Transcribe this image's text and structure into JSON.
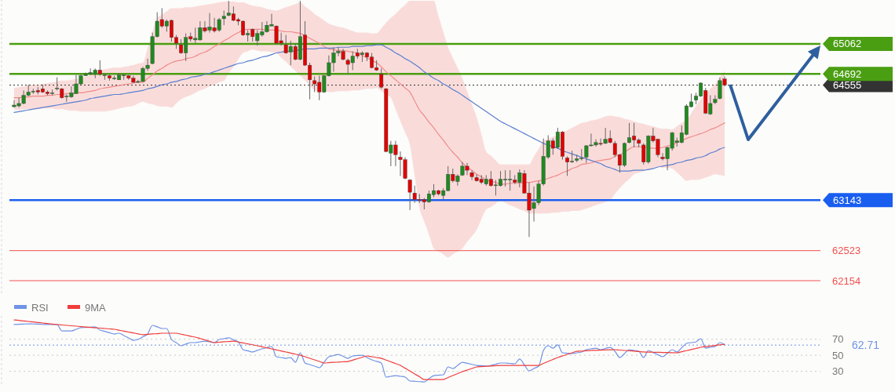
{
  "chart_data": [
    {
      "type": "candlestick",
      "categories": [
        null,
        null,
        null,
        null,
        null,
        null,
        null,
        null,
        null,
        null,
        null,
        null,
        null,
        null,
        null,
        null,
        null,
        null,
        null,
        null,
        null,
        null,
        null,
        null,
        null,
        null,
        null,
        null,
        null,
        null,
        null,
        null,
        null,
        null,
        null,
        null,
        null,
        null,
        null,
        null,
        null,
        null,
        null,
        null,
        null,
        null,
        null,
        null,
        null,
        null,
        null,
        null,
        null,
        null,
        null,
        null,
        null,
        null,
        null,
        null,
        null,
        null,
        null,
        null,
        null,
        null,
        null,
        null,
        null,
        null,
        null,
        null,
        null,
        null,
        null,
        null,
        null,
        null,
        null,
        null,
        null,
        null,
        null,
        null,
        null,
        null,
        null,
        null,
        null,
        null,
        null,
        null,
        null,
        null,
        null,
        null,
        null,
        null,
        null,
        null,
        null,
        null,
        null,
        null,
        null,
        null,
        null,
        null,
        null,
        null,
        null,
        null,
        null,
        null,
        null,
        null,
        null,
        null,
        null,
        null,
        null,
        null,
        null,
        null,
        null,
        null,
        null,
        null,
        null,
        null,
        null,
        null,
        null,
        null,
        null,
        null,
        null,
        null,
        null,
        null,
        null,
        null,
        null,
        null,
        null,
        null,
        null,
        null,
        null,
        null
      ],
      "ylim": [
        62000,
        65600
      ],
      "yticks": [
        62154,
        62523,
        63143,
        64555,
        64692,
        65062
      ],
      "tick_labels": "y",
      "ohlc": [
        [
          64290,
          64370,
          64280,
          64310
        ],
        [
          64300,
          64400,
          64280,
          64330
        ],
        [
          64330,
          64490,
          64320,
          64430
        ],
        [
          64430,
          64560,
          64420,
          64470
        ],
        [
          64470,
          64510,
          64450,
          64480
        ],
        [
          64490,
          64530,
          64440,
          64470
        ],
        [
          64510,
          64560,
          64460,
          64470
        ],
        [
          64470,
          64490,
          64430,
          64450
        ],
        [
          64450,
          64500,
          64430,
          64460
        ],
        [
          64510,
          64650,
          64490,
          64520
        ],
        [
          64510,
          64520,
          64390,
          64400
        ],
        [
          64410,
          64440,
          64350,
          64420
        ],
        [
          64410,
          64540,
          64400,
          64460
        ],
        [
          64450,
          64680,
          64450,
          64570
        ],
        [
          64570,
          64690,
          64560,
          64670
        ],
        [
          64670,
          64710,
          64670,
          64690
        ],
        [
          64690,
          64760,
          64680,
          64710
        ],
        [
          64690,
          64760,
          64640,
          64740
        ],
        [
          64740,
          64860,
          64670,
          64690
        ],
        [
          64670,
          64700,
          64620,
          64680
        ],
        [
          64670,
          64690,
          64610,
          64640
        ],
        [
          64630,
          64670,
          64620,
          64640
        ],
        [
          64620,
          64700,
          64620,
          64680
        ],
        [
          64670,
          64690,
          64620,
          64680
        ],
        [
          64670,
          64680,
          64620,
          64640
        ],
        [
          64640,
          64670,
          64580,
          64590
        ],
        [
          64590,
          64620,
          64580,
          64600
        ],
        [
          64600,
          64780,
          64590,
          64760
        ],
        [
          64760,
          64880,
          64730,
          64800
        ],
        [
          64820,
          65200,
          64810,
          65150
        ],
        [
          65150,
          65450,
          65140,
          65340
        ],
        [
          65360,
          65500,
          65260,
          65280
        ],
        [
          65280,
          65360,
          65210,
          65340
        ],
        [
          65350,
          65360,
          65090,
          65140
        ],
        [
          65140,
          65170,
          65000,
          65070
        ],
        [
          65050,
          65120,
          64940,
          64950
        ],
        [
          64950,
          65190,
          64850,
          65140
        ],
        [
          65150,
          65200,
          65090,
          65120
        ],
        [
          65110,
          65260,
          65070,
          65130
        ],
        [
          65110,
          65340,
          65100,
          65260
        ],
        [
          65260,
          65340,
          65200,
          65220
        ],
        [
          65230,
          65440,
          65200,
          65270
        ],
        [
          65260,
          65380,
          65200,
          65220
        ],
        [
          65230,
          65380,
          65210,
          65360
        ],
        [
          65370,
          65470,
          65290,
          65400
        ],
        [
          65410,
          65590,
          65400,
          65440
        ],
        [
          65430,
          65520,
          65340,
          65350
        ],
        [
          65360,
          65380,
          65290,
          65340
        ],
        [
          65340,
          65350,
          65160,
          65170
        ],
        [
          65170,
          65230,
          65090,
          65190
        ],
        [
          65240,
          65250,
          65090,
          65150
        ],
        [
          65100,
          65230,
          65040,
          65190
        ],
        [
          65170,
          65330,
          65150,
          65210
        ],
        [
          65210,
          65340,
          65200,
          65290
        ],
        [
          65280,
          65430,
          65280,
          65300
        ],
        [
          65280,
          65290,
          65060,
          65070
        ],
        [
          65100,
          65200,
          65040,
          65070
        ],
        [
          65050,
          65170,
          64940,
          64950
        ],
        [
          64960,
          65100,
          64800,
          65030
        ],
        [
          65030,
          65070,
          64860,
          64870
        ],
        [
          64870,
          65590,
          64860,
          65150
        ],
        [
          65170,
          65340,
          64790,
          64800
        ],
        [
          64800,
          64830,
          64380,
          64620
        ],
        [
          64610,
          64660,
          64470,
          64570
        ],
        [
          64590,
          64670,
          64370,
          64470
        ],
        [
          64470,
          64680,
          64460,
          64670
        ],
        [
          64670,
          64920,
          64660,
          64830
        ],
        [
          64830,
          65020,
          64720,
          64950
        ],
        [
          64950,
          65020,
          64910,
          64970
        ],
        [
          64970,
          65000,
          64860,
          64870
        ],
        [
          64860,
          64880,
          64690,
          64810
        ],
        [
          64830,
          64970,
          64740,
          64910
        ],
        [
          64950,
          65000,
          64880,
          64910
        ],
        [
          64930,
          64970,
          64840,
          64950
        ],
        [
          64950,
          64960,
          64850,
          64900
        ],
        [
          64900,
          64950,
          64760,
          64770
        ],
        [
          64770,
          64860,
          64730,
          64740
        ],
        [
          64690,
          64760,
          64510,
          64530
        ],
        [
          64510,
          64520,
          63730,
          63740
        ],
        [
          63720,
          63870,
          63560,
          63820
        ],
        [
          63820,
          63870,
          63560,
          63700
        ],
        [
          63670,
          63740,
          63440,
          63640
        ],
        [
          63640,
          63670,
          63400,
          63410
        ],
        [
          63390,
          63400,
          63020,
          63240
        ],
        [
          63230,
          63320,
          63110,
          63150
        ],
        [
          63150,
          63220,
          63110,
          63140
        ],
        [
          63150,
          63170,
          63030,
          63120
        ],
        [
          63120,
          63260,
          63110,
          63220
        ],
        [
          63210,
          63340,
          63180,
          63260
        ],
        [
          63260,
          63270,
          63200,
          63220
        ],
        [
          63200,
          63290,
          63150,
          63260
        ],
        [
          63260,
          63560,
          63250,
          63460
        ],
        [
          63460,
          63530,
          63360,
          63380
        ],
        [
          63370,
          63460,
          63320,
          63440
        ],
        [
          63450,
          63610,
          63440,
          63560
        ],
        [
          63560,
          63600,
          63450,
          63510
        ],
        [
          63480,
          63510,
          63390,
          63430
        ],
        [
          63420,
          63460,
          63370,
          63380
        ],
        [
          63400,
          63450,
          63340,
          63360
        ],
        [
          63340,
          63450,
          63320,
          63400
        ],
        [
          63400,
          63500,
          63310,
          63320
        ],
        [
          63320,
          63390,
          63200,
          63330
        ],
        [
          63320,
          63500,
          63310,
          63400
        ],
        [
          63390,
          63510,
          63310,
          63400
        ],
        [
          63390,
          63510,
          63260,
          63400
        ],
        [
          63390,
          63450,
          63340,
          63360
        ],
        [
          63360,
          63520,
          63300,
          63480
        ],
        [
          63470,
          63510,
          63220,
          63230
        ],
        [
          63230,
          63360,
          62690,
          63020
        ],
        [
          63040,
          63310,
          62880,
          63110
        ],
        [
          63110,
          63380,
          63080,
          63340
        ],
        [
          63340,
          63900,
          63320,
          63680
        ],
        [
          63670,
          63940,
          63650,
          63870
        ],
        [
          63870,
          63900,
          63700,
          63780
        ],
        [
          63790,
          64030,
          63770,
          63980
        ],
        [
          63980,
          63990,
          63640,
          63680
        ],
        [
          63660,
          63680,
          63440,
          63610
        ],
        [
          63610,
          63750,
          63600,
          63620
        ],
        [
          63630,
          63700,
          63610,
          63650
        ],
        [
          63650,
          63770,
          63630,
          63660
        ],
        [
          63670,
          63820,
          63600,
          63810
        ],
        [
          63810,
          63960,
          63800,
          63820
        ],
        [
          63820,
          63890,
          63800,
          63850
        ],
        [
          63840,
          63900,
          63810,
          63830
        ],
        [
          63840,
          64030,
          63830,
          63890
        ],
        [
          63900,
          64000,
          63840,
          63850
        ],
        [
          63840,
          63870,
          63670,
          63700
        ],
        [
          63700,
          63710,
          63480,
          63570
        ],
        [
          63570,
          63850,
          63550,
          63840
        ],
        [
          63850,
          64090,
          63840,
          63910
        ],
        [
          63930,
          64090,
          63790,
          63880
        ],
        [
          63880,
          63900,
          63790,
          63840
        ],
        [
          63820,
          63840,
          63580,
          63610
        ],
        [
          63610,
          63940,
          63590,
          63930
        ],
        [
          63930,
          64030,
          63850,
          63870
        ],
        [
          63890,
          63900,
          63670,
          63700
        ],
        [
          63670,
          63720,
          63630,
          63650
        ],
        [
          63650,
          63800,
          63510,
          63790
        ],
        [
          63780,
          63980,
          63750,
          63970
        ],
        [
          63850,
          63910,
          63800,
          63870
        ],
        [
          63850,
          64060,
          63840,
          63970
        ],
        [
          63950,
          64320,
          63940,
          64300
        ],
        [
          64290,
          64450,
          64280,
          64350
        ],
        [
          64370,
          64460,
          64320,
          64420
        ],
        [
          64420,
          64590,
          64410,
          64580
        ],
        [
          64490,
          64520,
          64200,
          64210
        ],
        [
          64200,
          64430,
          64190,
          64330
        ],
        [
          64340,
          64430,
          64320,
          64380
        ],
        [
          64390,
          64650,
          64380,
          64610
        ],
        [
          64630,
          64660,
          64540,
          64555
        ]
      ],
      "colors": [
        "#1f8a1f",
        "#1f8a1f",
        "#1f8a1f",
        "#1f8a1f",
        "#1f8a1f",
        "#e00000",
        "#e00000",
        "#e00000",
        "#1f8a1f",
        "#1f8a1f",
        "#e00000",
        "#1f8a1f",
        "#1f8a1f",
        "#1f8a1f",
        "#1f8a1f",
        "#1f8a1f",
        "#1f8a1f",
        "#1f8a1f",
        "#e00000",
        "#1f8a1f",
        "#e00000",
        "#1f8a1f",
        "#1f8a1f",
        "#1f8a1f",
        "#e00000",
        "#e00000",
        "#1f8a1f",
        "#1f8a1f",
        "#1f8a1f",
        "#1f8a1f",
        "#1f8a1f",
        "#e00000",
        "#1f8a1f",
        "#e00000",
        "#e00000",
        "#e00000",
        "#1f8a1f",
        "#e00000",
        "#1f8a1f",
        "#1f8a1f",
        "#e00000",
        "#1f8a1f",
        "#e00000",
        "#1f8a1f",
        "#1f8a1f",
        "#1f8a1f",
        "#e00000",
        "#e00000",
        "#e00000",
        "#1f8a1f",
        "#e00000",
        "#1f8a1f",
        "#1f8a1f",
        "#1f8a1f",
        "#1f8a1f",
        "#e00000",
        "#e00000",
        "#e00000",
        "#1f8a1f",
        "#e00000",
        "#1f8a1f",
        "#e00000",
        "#e00000",
        "#e00000",
        "#e00000",
        "#1f8a1f",
        "#1f8a1f",
        "#1f8a1f",
        "#1f8a1f",
        "#e00000",
        "#e00000",
        "#1f8a1f",
        "#e00000",
        "#1f8a1f",
        "#e00000",
        "#e00000",
        "#e00000",
        "#e00000",
        "#e00000",
        "#1f8a1f",
        "#e00000",
        "#e00000",
        "#e00000",
        "#e00000",
        "#e00000",
        "#e00000",
        "#e00000",
        "#1f8a1f",
        "#1f8a1f",
        "#e00000",
        "#1f8a1f",
        "#1f8a1f",
        "#e00000",
        "#1f8a1f",
        "#1f8a1f",
        "#e00000",
        "#e00000",
        "#e00000",
        "#e00000",
        "#1f8a1f",
        "#e00000",
        "#1f8a1f",
        "#1f8a1f",
        "#1f8a1f",
        "#1f8a1f",
        "#e00000",
        "#1f8a1f",
        "#e00000",
        "#e00000",
        "#1f8a1f",
        "#1f8a1f",
        "#1f8a1f",
        "#1f8a1f",
        "#e00000",
        "#1f8a1f",
        "#e00000",
        "#e00000",
        "#1f8a1f",
        "#1f8a1f",
        "#1f8a1f",
        "#1f8a1f",
        "#1f8a1f",
        "#1f8a1f",
        "#e00000",
        "#1f8a1f",
        "#e00000",
        "#e00000",
        "#e00000",
        "#1f8a1f",
        "#1f8a1f",
        "#e00000",
        "#e00000",
        "#e00000",
        "#1f8a1f",
        "#e00000",
        "#e00000",
        "#e00000",
        "#1f8a1f",
        "#1f8a1f",
        "#1f8a1f",
        "#1f8a1f",
        "#1f8a1f",
        "#1f8a1f",
        "#1f8a1f",
        "#1f8a1f",
        "#e00000",
        "#1f8a1f",
        "#1f8a1f",
        "#1f8a1f",
        "#e00000"
      ],
      "series": [
        {
          "type": "line",
          "color": "#f08a8a",
          "values": [
            64400,
            64400,
            64410,
            64410,
            64420,
            64420,
            64420,
            64430,
            64430,
            64440,
            64440,
            64450,
            64450,
            64460,
            64460,
            64470,
            64480,
            64490,
            64510,
            64520,
            64530,
            64540,
            64550,
            64560,
            64570,
            64580,
            64590,
            64590,
            64640,
            64680,
            64730,
            64760,
            64800,
            64830,
            64850,
            64860,
            64880,
            64890,
            64910,
            64940,
            64960,
            64990,
            65030,
            65060,
            65100,
            65130,
            65170,
            65200,
            65230,
            65240,
            65240,
            65240,
            65240,
            65230,
            65230,
            65230,
            65220,
            65210,
            65210,
            65200,
            65190,
            65160,
            65130,
            65100,
            65070,
            65030,
            65000,
            64990,
            64980,
            64980,
            64970,
            64960,
            64950,
            64920,
            64890,
            64860,
            64830,
            64780,
            64720,
            64670,
            64620,
            64570,
            64520,
            64470,
            64360,
            64250,
            64180,
            64100,
            64030,
            63950,
            63880,
            63800,
            63730,
            63670,
            63600,
            63550,
            63510,
            63460,
            63430,
            63390,
            63370,
            63360,
            63340,
            63340,
            63350,
            63350,
            63350,
            63360,
            63360,
            63370,
            63380,
            63390,
            63410,
            63430,
            63450,
            63480,
            63500,
            63530,
            63550,
            63580,
            63590,
            63600,
            63620,
            63630,
            63640,
            63650,
            63680,
            63700,
            63730,
            63770,
            63800,
            63800,
            63790,
            63790,
            63780,
            63780,
            63790,
            63810,
            63820,
            63850,
            63870,
            63900,
            63920,
            63940,
            63960,
            63980,
            64010,
            64030,
            64060,
            64090
          ],
          "upper": [
            64520,
            64530,
            64540,
            64550,
            64560,
            64560,
            64570,
            64580,
            64590,
            64600,
            64610,
            64610,
            64620,
            64630,
            64640,
            64660,
            64680,
            64710,
            64730,
            64750,
            64760,
            64770,
            64770,
            64780,
            64790,
            64800,
            64820,
            64830,
            65010,
            65200,
            65380,
            65420,
            65460,
            65500,
            65500,
            65500,
            65510,
            65510,
            65520,
            65530,
            65540,
            65550,
            65560,
            65570,
            65580,
            65580,
            65580,
            65570,
            65570,
            65550,
            65530,
            65520,
            65510,
            65490,
            65480,
            65470,
            65490,
            65510,
            65530,
            65550,
            65570,
            65520,
            65480,
            65430,
            65390,
            65350,
            65310,
            65290,
            65270,
            65260,
            65240,
            65220,
            65200,
            65200,
            65200,
            65190,
            65190,
            65250,
            65320,
            65380,
            65430,
            65490,
            65540,
            65590,
            65590,
            65590,
            65590,
            65590,
            65590,
            65400,
            65210,
            65020,
            64890,
            64770,
            64640,
            64480,
            64320,
            64160,
            63950,
            63740,
            63690,
            63630,
            63580,
            63580,
            63580,
            63580,
            63580,
            63580,
            63580,
            63680,
            63770,
            63870,
            63890,
            63920,
            63940,
            63970,
            64000,
            64030,
            64060,
            64090,
            64100,
            64120,
            64130,
            64150,
            64170,
            64180,
            64170,
            64160,
            64140,
            64130,
            64110,
            64090,
            64080,
            64060,
            64050,
            64030,
            64020,
            64020,
            64010,
            64050,
            64090,
            64130,
            64210,
            64300,
            64380,
            64440,
            64510,
            64570,
            64650,
            64730
          ],
          "lower": [
            64250,
            64250,
            64260,
            64260,
            64260,
            64260,
            64270,
            64270,
            64270,
            64260,
            64260,
            64250,
            64240,
            64240,
            64230,
            64230,
            64230,
            64230,
            64230,
            64230,
            64240,
            64250,
            64270,
            64280,
            64290,
            64300,
            64330,
            64350,
            64330,
            64320,
            64300,
            64290,
            64290,
            64280,
            64330,
            64380,
            64410,
            64430,
            64460,
            64490,
            64510,
            64540,
            64560,
            64590,
            64610,
            64700,
            64780,
            64870,
            64950,
            64970,
            64990,
            64980,
            64970,
            64970,
            64960,
            64950,
            64890,
            64840,
            64780,
            64730,
            64670,
            64610,
            64550,
            64490,
            64480,
            64480,
            64470,
            64470,
            64480,
            64480,
            64480,
            64490,
            64490,
            64500,
            64510,
            64510,
            64520,
            64480,
            64440,
            64400,
            64260,
            64110,
            63970,
            63820,
            63440,
            63050,
            62880,
            62720,
            62550,
            62510,
            62480,
            62440,
            62480,
            62510,
            62550,
            62630,
            62700,
            62780,
            62910,
            63030,
            63060,
            63100,
            63130,
            63110,
            63080,
            63060,
            63030,
            63010,
            62980,
            62980,
            62980,
            62980,
            62980,
            62990,
            62990,
            63000,
            63000,
            63010,
            63010,
            63020,
            63040,
            63060,
            63080,
            63100,
            63120,
            63140,
            63220,
            63290,
            63350,
            63400,
            63460,
            63480,
            63500,
            63510,
            63530,
            63550,
            63540,
            63540,
            63530,
            63480,
            63430,
            63380,
            63390,
            63390,
            63400,
            63420,
            63440,
            63460,
            63450,
            63440
          ]
        },
        {
          "type": "line",
          "color": "#5b7fd0",
          "values": [
            64220,
            64230,
            64240,
            64250,
            64260,
            64270,
            64280,
            64290,
            64300,
            64310,
            64320,
            64330,
            64340,
            64350,
            64360,
            64370,
            64390,
            64400,
            64410,
            64420,
            64430,
            64440,
            64440,
            64450,
            64460,
            64470,
            64480,
            64490,
            64510,
            64520,
            64540,
            64560,
            64570,
            64590,
            64600,
            64620,
            64630,
            64650,
            64660,
            64670,
            64690,
            64700,
            64720,
            64740,
            64760,
            64780,
            64800,
            64820,
            64830,
            64850,
            64860,
            64880,
            64900,
            64910,
            64930,
            64950,
            64960,
            64970,
            64970,
            64980,
            64990,
            65000,
            65000,
            65000,
            65010,
            65010,
            65010,
            65010,
            65020,
            65020,
            65020,
            65030,
            65030,
            65030,
            65040,
            65040,
            65050,
            65050,
            65020,
            64990,
            64950,
            64920,
            64880,
            64850,
            64810,
            64770,
            64720,
            64680,
            64640,
            64610,
            64570,
            64540,
            64500,
            64470,
            64430,
            64390,
            64350,
            64310,
            64270,
            64230,
            64190,
            64150,
            64110,
            64080,
            64050,
            64020,
            63990,
            63960,
            63930,
            63900,
            63870,
            63840,
            63820,
            63800,
            63780,
            63750,
            63730,
            63710,
            63690,
            63670,
            63650,
            63630,
            63610,
            63590,
            63560,
            63540,
            63520,
            63500,
            63500,
            63500,
            63510,
            63510,
            63510,
            63520,
            63530,
            63550,
            63560,
            63570,
            63580,
            63600,
            63610,
            63630,
            63640,
            63660,
            63670,
            63690,
            63720,
            63740,
            63770,
            63790
          ]
        }
      ],
      "ref_lines": [
        {
          "axis": "y",
          "value": 65062,
          "color": "#4a9e12"
        },
        {
          "axis": "y",
          "value": 64692,
          "color": "#4a9e12"
        },
        {
          "axis": "y",
          "value": 64555,
          "color": "#333333",
          "line_style": "dotted"
        },
        {
          "axis": "y",
          "value": 63143,
          "color": "#1a5ef0"
        },
        {
          "axis": "y",
          "value": 62523,
          "color": "#f05050"
        },
        {
          "axis": "y",
          "value": 62154,
          "color": "#f05050"
        }
      ]
    },
    {
      "type": "line",
      "categories": [
        null,
        null,
        null,
        null,
        null,
        null,
        null,
        null,
        null,
        null,
        null,
        null,
        null,
        null,
        null,
        null,
        null,
        null,
        null,
        null,
        null,
        null,
        null,
        null,
        null,
        null,
        null,
        null,
        null,
        null,
        null,
        null,
        null,
        null,
        null,
        null,
        null,
        null,
        null,
        null,
        null,
        null,
        null,
        null,
        null,
        null,
        null,
        null,
        null,
        null,
        null,
        null,
        null,
        null,
        null,
        null,
        null,
        null,
        null,
        null,
        null,
        null,
        null,
        null,
        null,
        null,
        null,
        null,
        null,
        null,
        null,
        null,
        null,
        null,
        null,
        null,
        null,
        null,
        null,
        null,
        null,
        null,
        null,
        null,
        null,
        null,
        null,
        null,
        null,
        null,
        null,
        null,
        null,
        null,
        null,
        null,
        null,
        null,
        null,
        null,
        null,
        null,
        null,
        null,
        null,
        null,
        null,
        null,
        null,
        null,
        null,
        null,
        null,
        null,
        null,
        null,
        null,
        null,
        null,
        null,
        null,
        null,
        null,
        null,
        null,
        null,
        null,
        null,
        null,
        null,
        null,
        null,
        null,
        null,
        null,
        null,
        null,
        null,
        null,
        null,
        null,
        null,
        null,
        null,
        null,
        null,
        null,
        null,
        null,
        null
      ],
      "ylim": [
        14,
        100
      ],
      "yticks": [
        30,
        50,
        70
      ],
      "grid": "y",
      "legend": "top left",
      "tick_labels": "y",
      "series": [
        {
          "name": "RSI",
          "color": "#6f93e6",
          "values": [
            88.3,
            88.6,
            88.9,
            89.2,
            89.0,
            88.8,
            88.5,
            88.3,
            88.3,
            88.3,
            80.4,
            80.4,
            80.4,
            82.4,
            84.4,
            84.7,
            85.0,
            85.3,
            81.4,
            79.8,
            78.1,
            76.5,
            77.5,
            74.6,
            71.6,
            68.7,
            69.7,
            73.1,
            76.5,
            87.3,
            85.4,
            83.4,
            83.4,
            69.7,
            65.8,
            61.9,
            63.9,
            65.8,
            65.8,
            66.8,
            67.7,
            66.8,
            65.8,
            69.7,
            70.7,
            71.7,
            69.3,
            66.8,
            57.0,
            55.6,
            54.1,
            56.1,
            58.0,
            59.5,
            60.9,
            48.2,
            47.2,
            46.2,
            47.2,
            41.3,
            53.1,
            40.4,
            38.4,
            36.5,
            34.5,
            41.4,
            48.2,
            49.7,
            51.1,
            48.7,
            46.2,
            49.2,
            49.7,
            50.1,
            47.2,
            44.3,
            42.4,
            40.4,
            22.8,
            23.8,
            24.7,
            23.8,
            22.8,
            17.9,
            17.6,
            17.2,
            16.9,
            20.8,
            24.7,
            25.2,
            25.7,
            35.5,
            33.5,
            37.4,
            41.3,
            40.0,
            38.7,
            37.4,
            37.0,
            36.5,
            37.4,
            38.9,
            40.4,
            40.4,
            39.9,
            39.4,
            45.3,
            38.0,
            30.6,
            33.6,
            36.5,
            56.0,
            61.9,
            58.9,
            62.9,
            53.1,
            52.6,
            52.1,
            53.1,
            54.1,
            57.0,
            58.0,
            58.9,
            57.0,
            58.5,
            59.9,
            55.0,
            47.2,
            52.1,
            57.0,
            56.0,
            55.0,
            47.2,
            56.0,
            53.4,
            50.8,
            48.2,
            52.6,
            57.0,
            54.1,
            59.5,
            64.8,
            65.8,
            66.8,
            70.7,
            58.9,
            59.9,
            60.9,
            65.8,
            62.71
          ]
        },
        {
          "name": "9MA",
          "color": "#f03c3c",
          "values": [
            94.1,
            93.5,
            92.8,
            92.2,
            91.5,
            90.9,
            90.2,
            89.6,
            88.9,
            88.3,
            87.8,
            87.3,
            86.8,
            86.3,
            85.8,
            85.3,
            84.8,
            84.3,
            83.9,
            83.4,
            82.9,
            82.4,
            81.3,
            80.1,
            79.0,
            77.9,
            76.7,
            75.6,
            76.1,
            76.6,
            77.0,
            77.5,
            77.5,
            77.5,
            77.5,
            76.3,
            75.1,
            73.8,
            72.6,
            70.9,
            69.2,
            67.5,
            65.8,
            66.3,
            66.8,
            67.2,
            67.7,
            66.5,
            65.4,
            64.2,
            63.1,
            61.9,
            60.6,
            59.3,
            58.0,
            56.7,
            55.4,
            54.1,
            52.8,
            51.4,
            50.1,
            48.2,
            46.2,
            44.3,
            42.3,
            40.4,
            40.8,
            41.2,
            41.5,
            41.9,
            42.3,
            44.0,
            45.8,
            47.5,
            49.2,
            48.2,
            47.2,
            46.2,
            44.0,
            41.8,
            39.6,
            37.4,
            33.9,
            30.4,
            26.8,
            23.3,
            19.8,
            19.8,
            19.8,
            19.8,
            19.8,
            22.3,
            24.7,
            27.2,
            29.6,
            31.6,
            33.5,
            35.5,
            35.9,
            36.3,
            36.6,
            37.0,
            37.4,
            37.4,
            37.4,
            37.4,
            37.4,
            37.4,
            37.4,
            37.4,
            37.4,
            39.9,
            42.3,
            44.8,
            47.2,
            49.2,
            51.1,
            53.1,
            55.0,
            55.3,
            55.7,
            56.0,
            56.2,
            56.4,
            56.6,
            56.8,
            57.0,
            56.5,
            56.0,
            55.6,
            55.1,
            54.6,
            54.1,
            54.0,
            53.8,
            53.7,
            53.5,
            53.4,
            53.2,
            53.1,
            54.5,
            55.8,
            57.2,
            58.5,
            59.9,
            60.7,
            61.5,
            62.2,
            63.0,
            63.8
          ]
        }
      ],
      "ref_lines": [
        {
          "axis": "y",
          "value": 62.71,
          "label": "62.71",
          "color": "#6f93e6",
          "line_style": "dotted"
        }
      ]
    }
  ]
}
